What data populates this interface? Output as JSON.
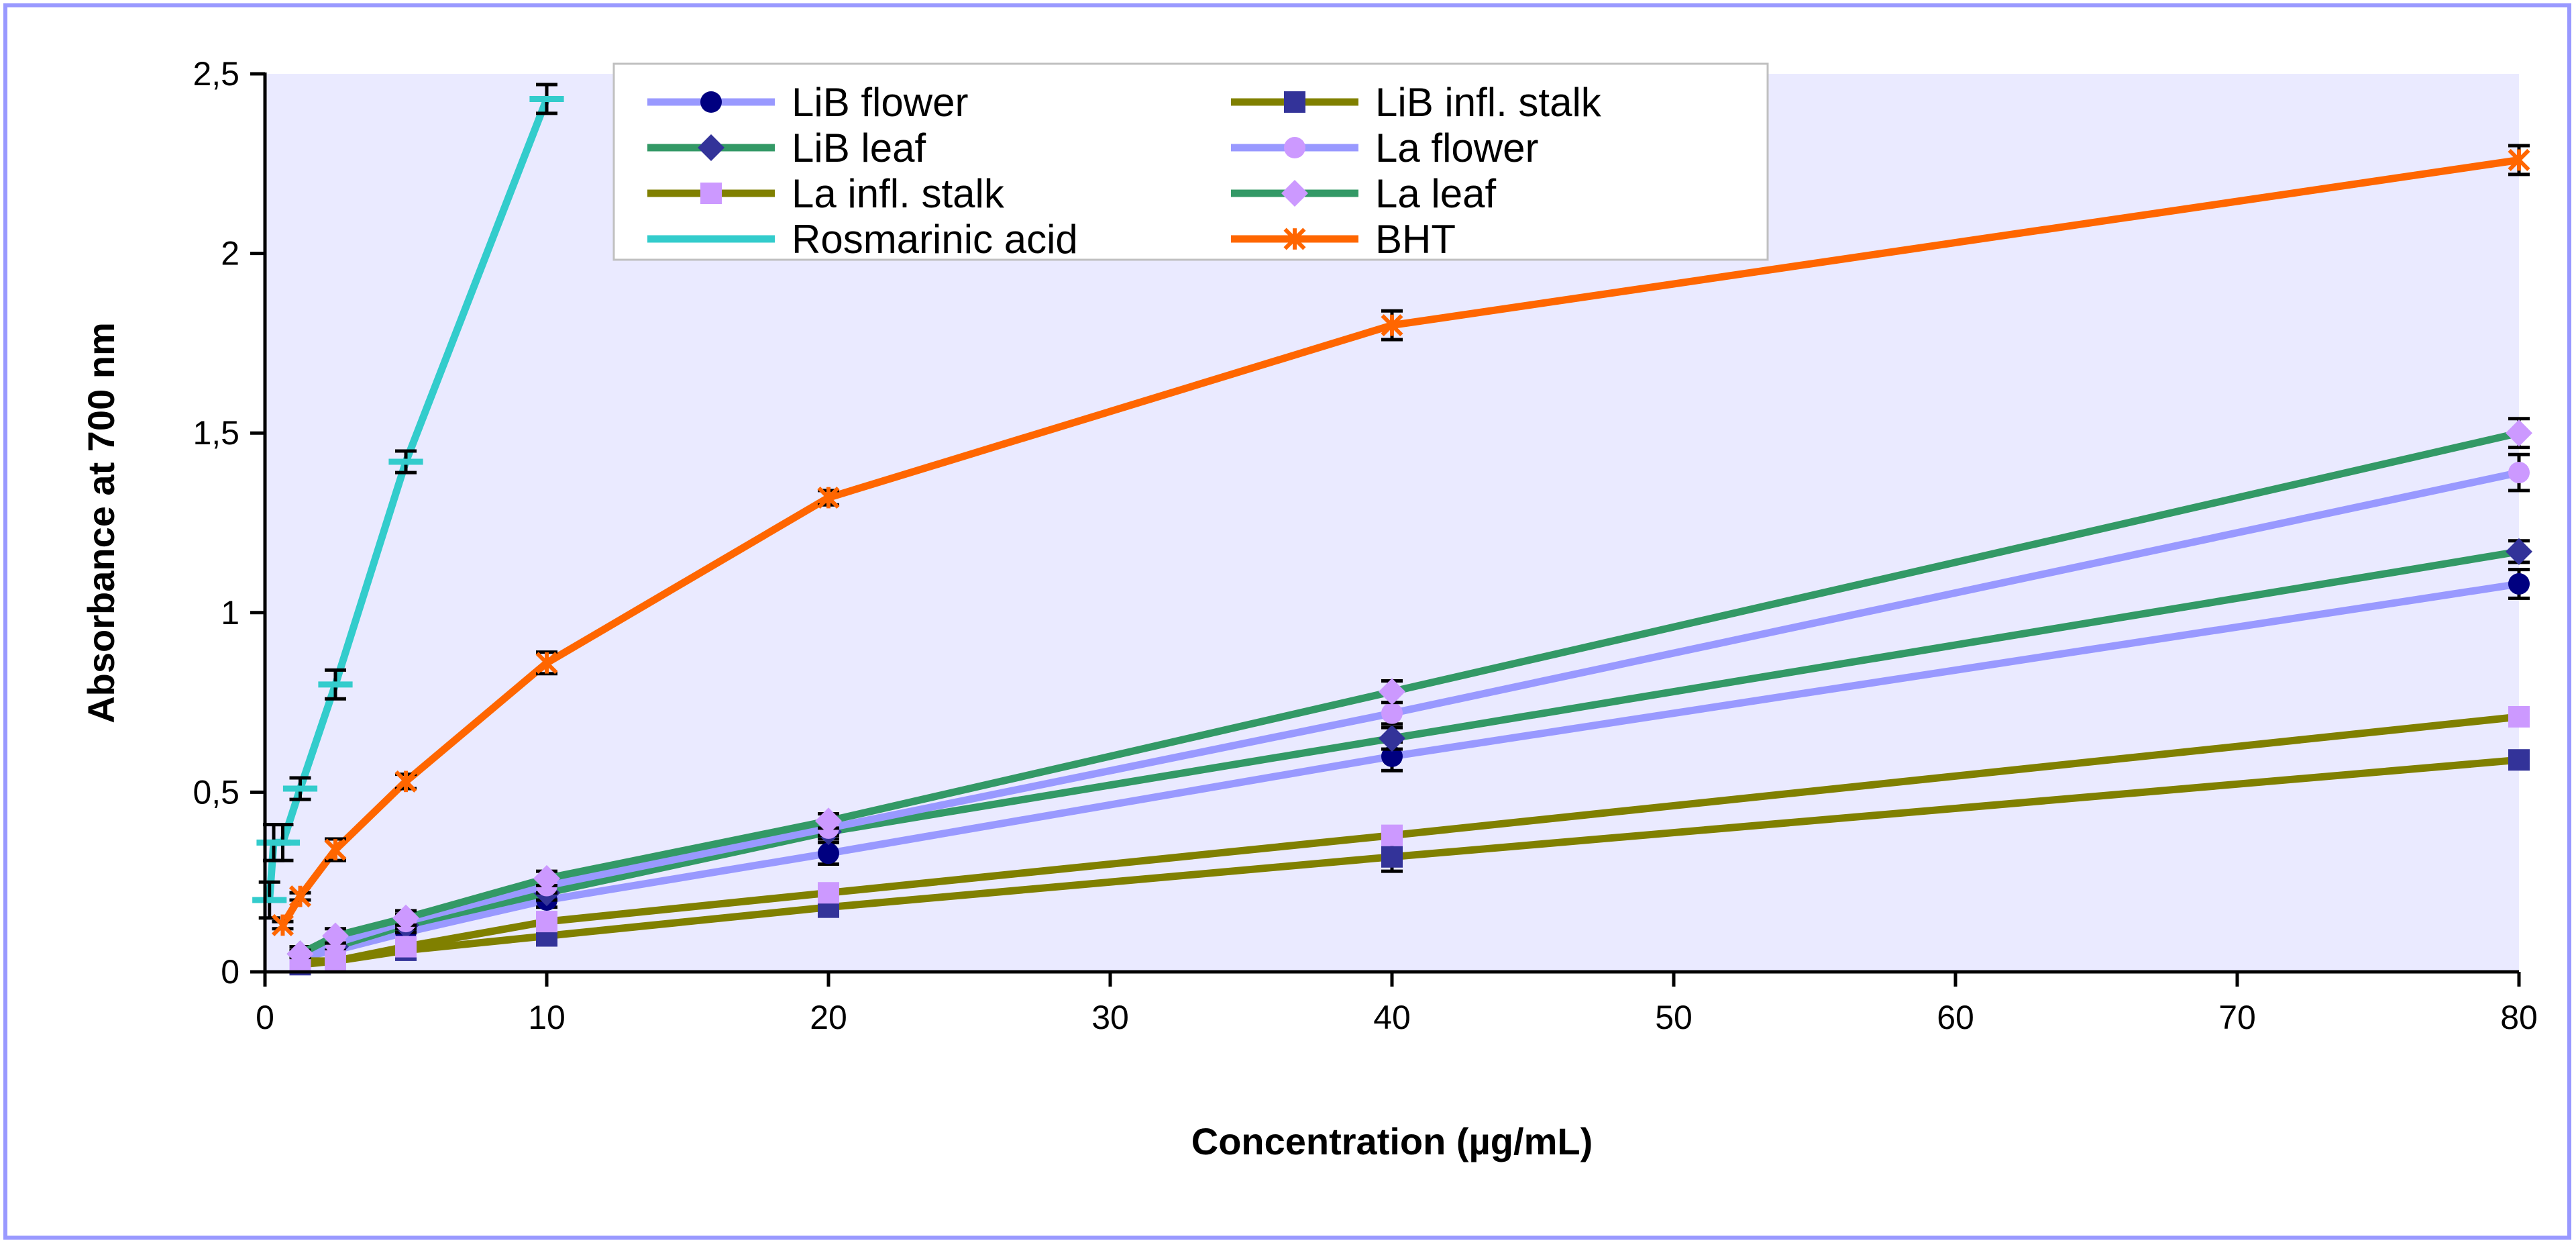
{
  "chart_data": {
    "type": "line",
    "xlabel": "Concentration (µg/mL)",
    "ylabel": "Absorbance at 700 nm",
    "xlim": [
      0,
      80
    ],
    "ylim": [
      0,
      2.5
    ],
    "x_ticks": [
      "0",
      "10",
      "20",
      "30",
      "40",
      "50",
      "60",
      "70",
      "80"
    ],
    "y_ticks": [
      "0",
      "0,5",
      "1",
      "1,5",
      "2",
      "2,5"
    ],
    "grid": false,
    "legend_position": "top",
    "series": [
      {
        "name": "LiB flower",
        "color": "#9999ff",
        "marker": "circle",
        "marker_color": "#000080",
        "x": [
          1.25,
          2.5,
          5,
          10,
          20,
          40,
          80
        ],
        "y": [
          0.04,
          0.06,
          0.11,
          0.2,
          0.33,
          0.6,
          1.08
        ],
        "err": [
          0.02,
          0.02,
          0.02,
          0.02,
          0.03,
          0.04,
          0.04
        ]
      },
      {
        "name": "LiB infl. stalk",
        "color": "#808000",
        "marker": "square",
        "marker_color": "#333399",
        "x": [
          1.25,
          2.5,
          5,
          10,
          20,
          40,
          80
        ],
        "y": [
          0.02,
          0.03,
          0.06,
          0.1,
          0.18,
          0.32,
          0.59
        ],
        "err": [
          0.01,
          0.01,
          0.02,
          0.02,
          0.02,
          0.04,
          0.02
        ]
      },
      {
        "name": "LiB leaf",
        "color": "#339966",
        "marker": "diamond",
        "marker_color": "#333399",
        "x": [
          1.25,
          2.5,
          5,
          10,
          20,
          40,
          80
        ],
        "y": [
          0.05,
          0.07,
          0.13,
          0.22,
          0.39,
          0.65,
          1.17
        ],
        "err": [
          0.02,
          0.02,
          0.02,
          0.02,
          0.02,
          0.03,
          0.03
        ]
      },
      {
        "name": "La flower",
        "color": "#9999ff",
        "marker": "circle",
        "marker_color": "#cc99ff",
        "x": [
          1.25,
          2.5,
          5,
          10,
          20,
          40,
          80
        ],
        "y": [
          0.03,
          0.08,
          0.14,
          0.24,
          0.4,
          0.72,
          1.39
        ],
        "err": [
          0.01,
          0.02,
          0.02,
          0.02,
          0.02,
          0.03,
          0.05
        ]
      },
      {
        "name": "La infl. stalk",
        "color": "#808000",
        "marker": "square",
        "marker_color": "#cc99ff",
        "x": [
          1.25,
          2.5,
          5,
          10,
          20,
          40,
          80
        ],
        "y": [
          0.03,
          0.03,
          0.07,
          0.14,
          0.22,
          0.38,
          0.71
        ],
        "err": [
          0.01,
          0.01,
          0.01,
          0.02,
          0.02,
          0.02,
          0.02
        ]
      },
      {
        "name": "La leaf",
        "color": "#339966",
        "marker": "diamond",
        "marker_color": "#cc99ff",
        "x": [
          1.25,
          2.5,
          5,
          10,
          20,
          40,
          80
        ],
        "y": [
          0.05,
          0.1,
          0.15,
          0.26,
          0.42,
          0.78,
          1.5
        ],
        "err": [
          0.01,
          0.02,
          0.02,
          0.02,
          0.02,
          0.03,
          0.04
        ]
      },
      {
        "name": "Rosmarinic acid",
        "color": "#33cccc",
        "marker": "dash",
        "marker_color": "#33cccc",
        "x": [
          0.16,
          0.31,
          0.63,
          1.25,
          2.5,
          5,
          10
        ],
        "y": [
          0.2,
          0.36,
          0.36,
          0.51,
          0.8,
          1.42,
          2.43
        ],
        "err": [
          0.05,
          0.05,
          0.05,
          0.03,
          0.04,
          0.03,
          0.04
        ]
      },
      {
        "name": "BHT",
        "color": "#ff6600",
        "marker": "star",
        "marker_color": "#ff6600",
        "x": [
          0.63,
          1.25,
          2.5,
          5,
          10,
          20,
          40,
          80
        ],
        "y": [
          0.13,
          0.21,
          0.34,
          0.53,
          0.86,
          1.32,
          1.8,
          2.26
        ],
        "err": [
          0.01,
          0.01,
          0.03,
          0.02,
          0.03,
          0.02,
          0.04,
          0.04
        ]
      }
    ],
    "colors": {
      "plot_background": "#eaeaff",
      "frame_border": "#9999ff",
      "axis": "#000000"
    }
  }
}
